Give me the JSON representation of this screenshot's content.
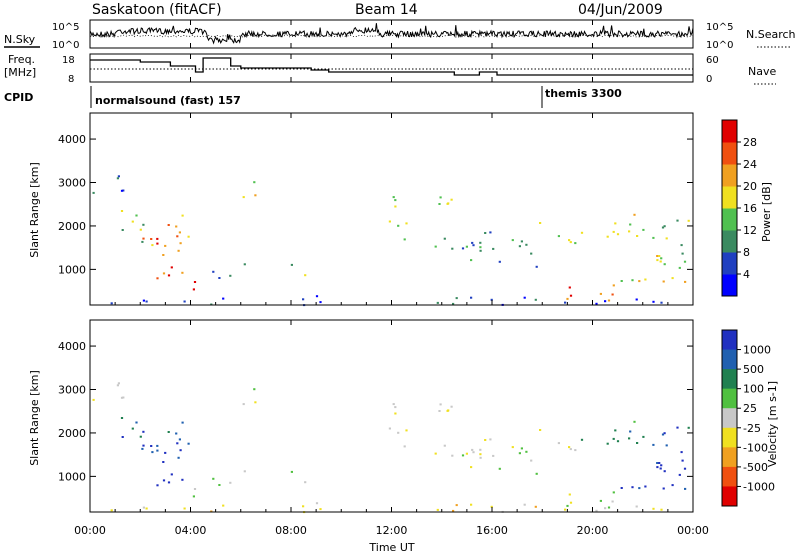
{
  "header": {
    "site": "Saskatoon (fitACF)",
    "beam": "Beam 14",
    "date": "04/Jun/2009"
  },
  "left_labels": {
    "nsky": "N.Sky",
    "freq_line1": "Freq.",
    "freq_line2": "[MHz]",
    "cpid": "CPID"
  },
  "right_labels": {
    "nsearch": "N.Search",
    "nave": "Nave"
  },
  "noise_panel": {
    "yticks_left": [
      "10^5",
      "10^0"
    ],
    "yticks_right": [
      "10^5",
      "10^0"
    ]
  },
  "freq_panel": {
    "yticks_left": [
      "18",
      "8"
    ],
    "yticks_right": [
      "60",
      "0"
    ]
  },
  "cpid_panel": {
    "entries": [
      {
        "label": "normalsound (fast) 157",
        "start_hour": 0
      },
      {
        "label": "themis 3300",
        "start_hour": 18
      }
    ]
  },
  "x_axis": {
    "label": "Time UT",
    "ticks": [
      "00:00",
      "04:00",
      "08:00",
      "12:00",
      "16:00",
      "20:00",
      "00:00"
    ]
  },
  "chart_data": [
    {
      "type": "heatmap",
      "name": "power",
      "ylabel": "Slant Range [km]",
      "yticks": [
        "1000",
        "2000",
        "3000",
        "4000"
      ],
      "ylim": [
        180,
        4600
      ],
      "xlim": [
        0,
        24
      ],
      "colorbar": {
        "label": "Power [dB]",
        "ticks": [
          "4",
          "8",
          "12",
          "16",
          "20",
          "24",
          "28"
        ],
        "colors": [
          "#0000ff",
          "#2040c0",
          "#3a8a60",
          "#50c050",
          "#f0e020",
          "#f0a020",
          "#f05010",
          "#e00000"
        ]
      }
    },
    {
      "type": "heatmap",
      "name": "velocity",
      "ylabel": "Slant Range [km]",
      "yticks": [
        "1000",
        "2000",
        "3000",
        "4000"
      ],
      "ylim": [
        180,
        4600
      ],
      "xlim": [
        0,
        24
      ],
      "colorbar": {
        "label": "Velocity [m s-1]",
        "ticks": [
          "1000",
          "500",
          "100",
          "25",
          "-25",
          "-100",
          "-500",
          "-1000"
        ],
        "colors": [
          "#2030c0",
          "#2060b0",
          "#208050",
          "#50c040",
          "#c8c8c8",
          "#f0e020",
          "#f0a020",
          "#f05010",
          "#e00000"
        ]
      }
    }
  ]
}
